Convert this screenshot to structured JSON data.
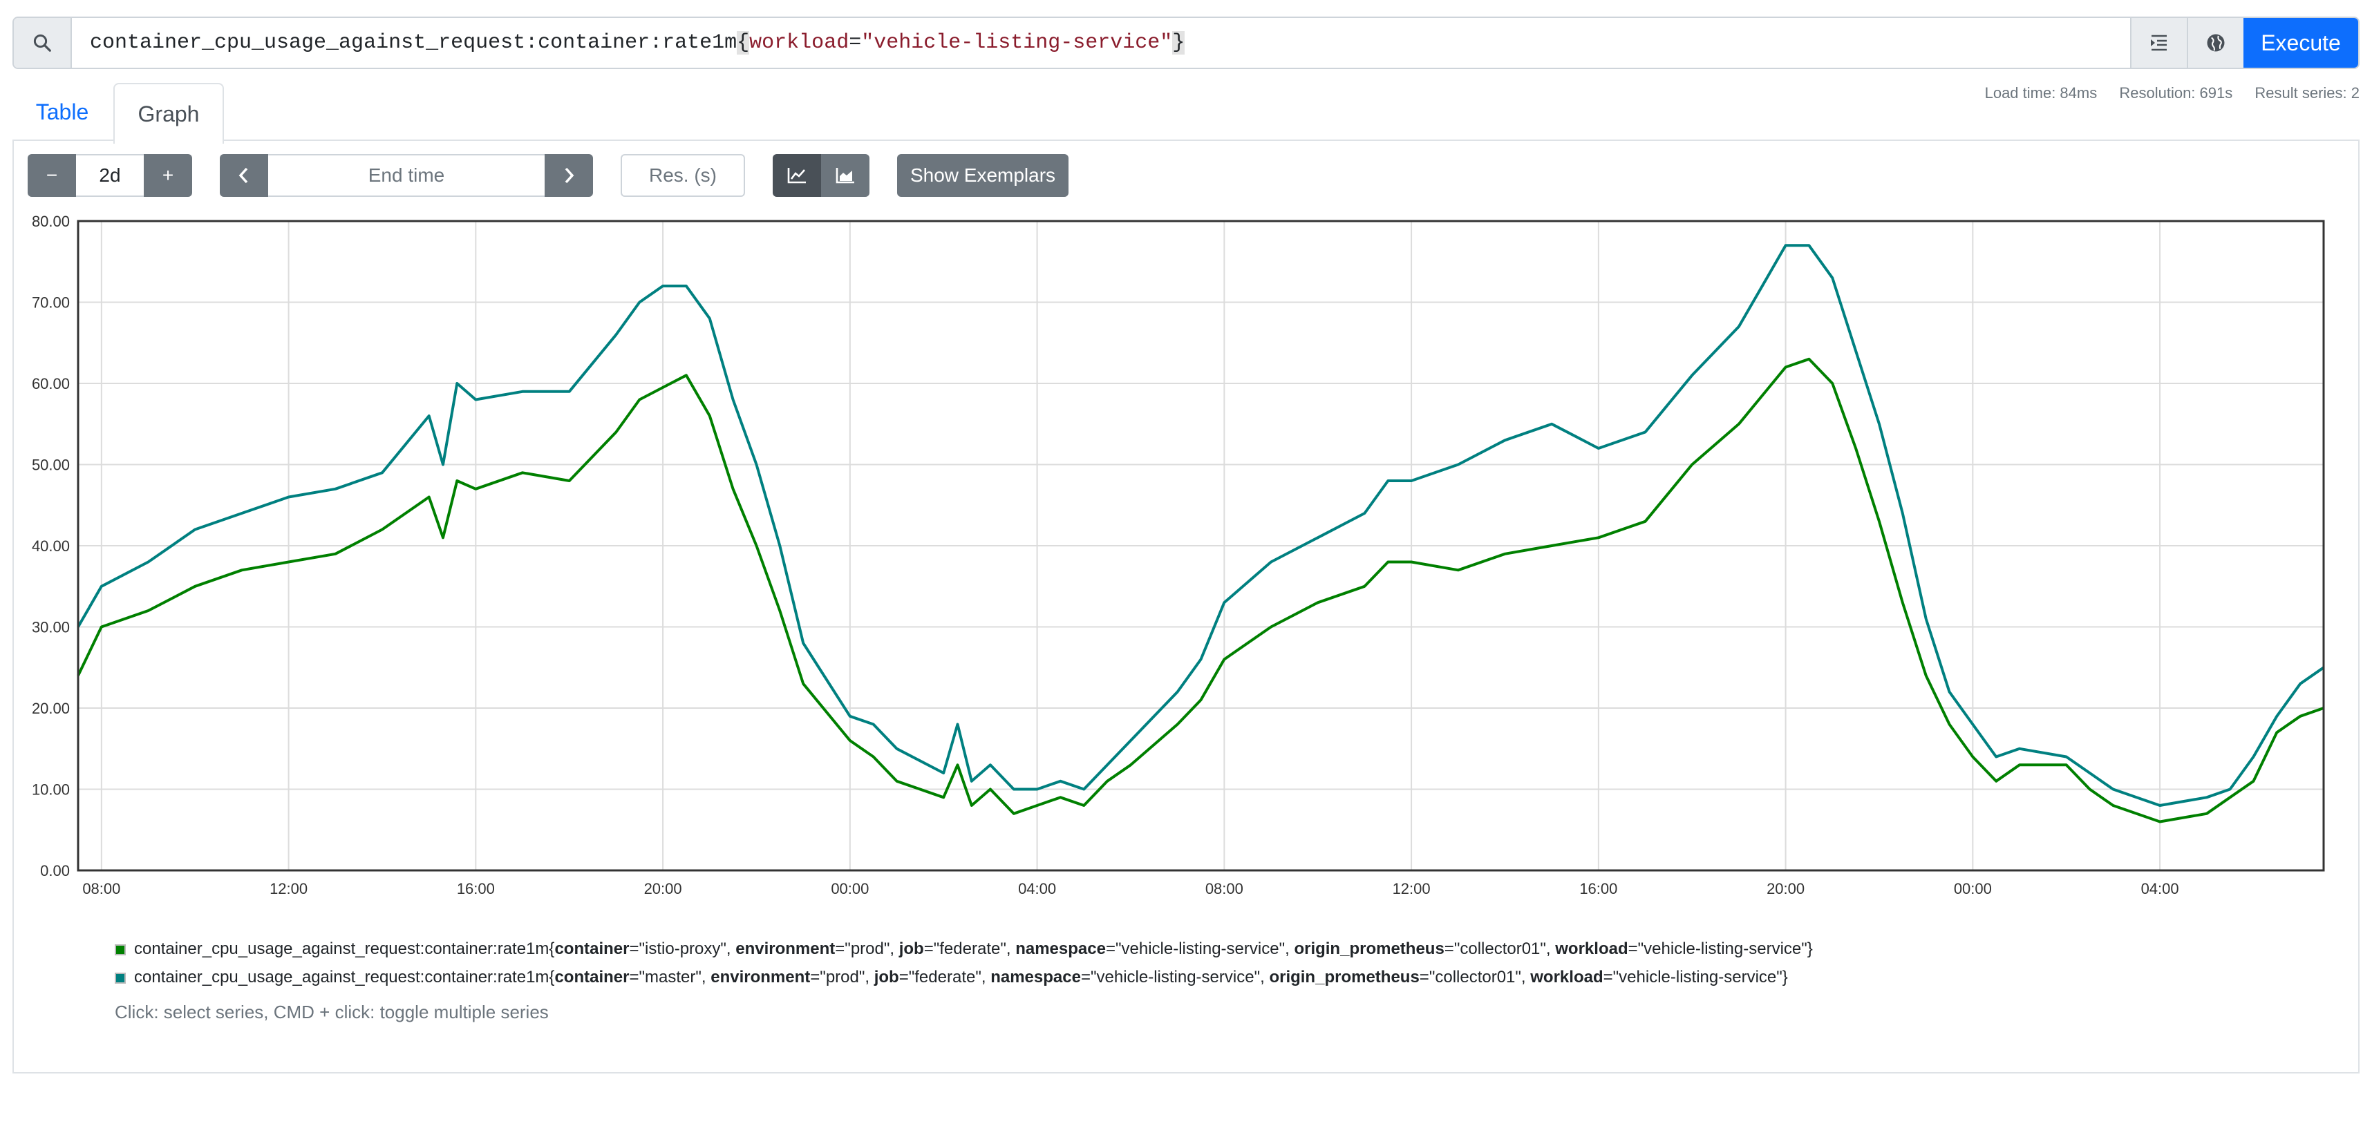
{
  "query": {
    "metric": "container_cpu_usage_against_request:container:rate1m",
    "open_brace": "{",
    "label": "workload",
    "eq": "=",
    "value": "\"vehicle-listing-service\"",
    "close_brace": "}",
    "execute_label": "Execute",
    "icons": {
      "search": "search-icon",
      "format": "format-icon",
      "explorer": "globe-icon"
    }
  },
  "tabs": {
    "table": "Table",
    "graph": "Graph"
  },
  "stats": {
    "load_time": "Load time: 84ms",
    "resolution": "Resolution: 691s",
    "result_series": "Result series: 2"
  },
  "controls": {
    "minus": "−",
    "range": "2d",
    "plus": "+",
    "prev": "‹",
    "end_time_placeholder": "End time",
    "next": "›",
    "res_placeholder": "Res. (s)",
    "show_exemplars": "Show Exemplars"
  },
  "chart_data": {
    "type": "line",
    "ylim": [
      0,
      80
    ],
    "yticks": [
      "0.00",
      "10.00",
      "20.00",
      "30.00",
      "40.00",
      "50.00",
      "60.00",
      "70.00",
      "80.00"
    ],
    "xticks": [
      "08:00",
      "12:00",
      "16:00",
      "20:00",
      "00:00",
      "04:00",
      "08:00",
      "12:00",
      "16:00",
      "20:00",
      "00:00",
      "04:00"
    ],
    "xtick_hours": [
      8,
      12,
      16,
      20,
      24,
      28,
      32,
      36,
      40,
      44,
      48,
      52
    ],
    "x_range_hours": [
      7.5,
      55.5
    ],
    "grid": true,
    "series": [
      {
        "color": "#008000",
        "points": [
          [
            7.5,
            24
          ],
          [
            8,
            30
          ],
          [
            9,
            32
          ],
          [
            10,
            35
          ],
          [
            11,
            37
          ],
          [
            12,
            38
          ],
          [
            13,
            39
          ],
          [
            14,
            42
          ],
          [
            15,
            46
          ],
          [
            15.3,
            41
          ],
          [
            15.6,
            48
          ],
          [
            16,
            47
          ],
          [
            17,
            49
          ],
          [
            18,
            48
          ],
          [
            19,
            54
          ],
          [
            19.5,
            58
          ],
          [
            20,
            59.5
          ],
          [
            20.5,
            61
          ],
          [
            21,
            56
          ],
          [
            21.5,
            47
          ],
          [
            22,
            40
          ],
          [
            22.5,
            32
          ],
          [
            23,
            23
          ],
          [
            24,
            16
          ],
          [
            24.5,
            14
          ],
          [
            25,
            11
          ],
          [
            26,
            9
          ],
          [
            26.3,
            13
          ],
          [
            26.6,
            8
          ],
          [
            27,
            10
          ],
          [
            27.5,
            7
          ],
          [
            28,
            8
          ],
          [
            28.5,
            9
          ],
          [
            29,
            8
          ],
          [
            29.5,
            11
          ],
          [
            30,
            13
          ],
          [
            31,
            18
          ],
          [
            31.5,
            21
          ],
          [
            32,
            26
          ],
          [
            33,
            30
          ],
          [
            34,
            33
          ],
          [
            35,
            35
          ],
          [
            35.5,
            38
          ],
          [
            36,
            38
          ],
          [
            37,
            37
          ],
          [
            38,
            39
          ],
          [
            39,
            40
          ],
          [
            40,
            41
          ],
          [
            41,
            43
          ],
          [
            42,
            50
          ],
          [
            43,
            55
          ],
          [
            44,
            62
          ],
          [
            44.5,
            63
          ],
          [
            45,
            60
          ],
          [
            45.5,
            52
          ],
          [
            46,
            43
          ],
          [
            46.5,
            33
          ],
          [
            47,
            24
          ],
          [
            47.5,
            18
          ],
          [
            48,
            14
          ],
          [
            48.5,
            11
          ],
          [
            49,
            13
          ],
          [
            50,
            13
          ],
          [
            50.5,
            10
          ],
          [
            51,
            8
          ],
          [
            52,
            6
          ],
          [
            53,
            7
          ],
          [
            53.5,
            9
          ],
          [
            54,
            11
          ],
          [
            54.5,
            17
          ],
          [
            55,
            19
          ],
          [
            55.5,
            20
          ]
        ]
      },
      {
        "color": "#008080",
        "points": [
          [
            7.5,
            30
          ],
          [
            8,
            35
          ],
          [
            9,
            38
          ],
          [
            10,
            42
          ],
          [
            11,
            44
          ],
          [
            12,
            46
          ],
          [
            13,
            47
          ],
          [
            14,
            49
          ],
          [
            15,
            56
          ],
          [
            15.3,
            50
          ],
          [
            15.6,
            60
          ],
          [
            16,
            58
          ],
          [
            17,
            59
          ],
          [
            18,
            59
          ],
          [
            19,
            66
          ],
          [
            19.5,
            70
          ],
          [
            20,
            72
          ],
          [
            20.5,
            72
          ],
          [
            21,
            68
          ],
          [
            21.5,
            58
          ],
          [
            22,
            50
          ],
          [
            22.5,
            40
          ],
          [
            23,
            28
          ],
          [
            24,
            19
          ],
          [
            24.5,
            18
          ],
          [
            25,
            15
          ],
          [
            26,
            12
          ],
          [
            26.3,
            18
          ],
          [
            26.6,
            11
          ],
          [
            27,
            13
          ],
          [
            27.5,
            10
          ],
          [
            28,
            10
          ],
          [
            28.5,
            11
          ],
          [
            29,
            10
          ],
          [
            29.5,
            13
          ],
          [
            30,
            16
          ],
          [
            31,
            22
          ],
          [
            31.5,
            26
          ],
          [
            32,
            33
          ],
          [
            33,
            38
          ],
          [
            34,
            41
          ],
          [
            35,
            44
          ],
          [
            35.5,
            48
          ],
          [
            36,
            48
          ],
          [
            37,
            50
          ],
          [
            38,
            53
          ],
          [
            39,
            55
          ],
          [
            40,
            52
          ],
          [
            41,
            54
          ],
          [
            42,
            61
          ],
          [
            43,
            67
          ],
          [
            44,
            77
          ],
          [
            44.5,
            77
          ],
          [
            45,
            73
          ],
          [
            45.5,
            64
          ],
          [
            46,
            55
          ],
          [
            46.5,
            44
          ],
          [
            47,
            31
          ],
          [
            47.5,
            22
          ],
          [
            48,
            18
          ],
          [
            48.5,
            14
          ],
          [
            49,
            15
          ],
          [
            50,
            14
          ],
          [
            50.5,
            12
          ],
          [
            51,
            10
          ],
          [
            52,
            8
          ],
          [
            53,
            9
          ],
          [
            53.5,
            10
          ],
          [
            54,
            14
          ],
          [
            54.5,
            19
          ],
          [
            55,
            23
          ],
          [
            55.5,
            25
          ]
        ]
      }
    ]
  },
  "legend": [
    {
      "color": "#008000",
      "metric": "container_cpu_usage_against_request:container:rate1m",
      "container": "istio-proxy",
      "environment": "prod",
      "job": "federate",
      "namespace": "vehicle-listing-service",
      "origin_prometheus": "collector01",
      "workload": "vehicle-listing-service"
    },
    {
      "color": "#008080",
      "metric": "container_cpu_usage_against_request:container:rate1m",
      "container": "master",
      "environment": "prod",
      "job": "federate",
      "namespace": "vehicle-listing-service",
      "origin_prometheus": "collector01",
      "workload": "vehicle-listing-service"
    }
  ],
  "hint": "Click: select series, CMD + click: toggle multiple series"
}
